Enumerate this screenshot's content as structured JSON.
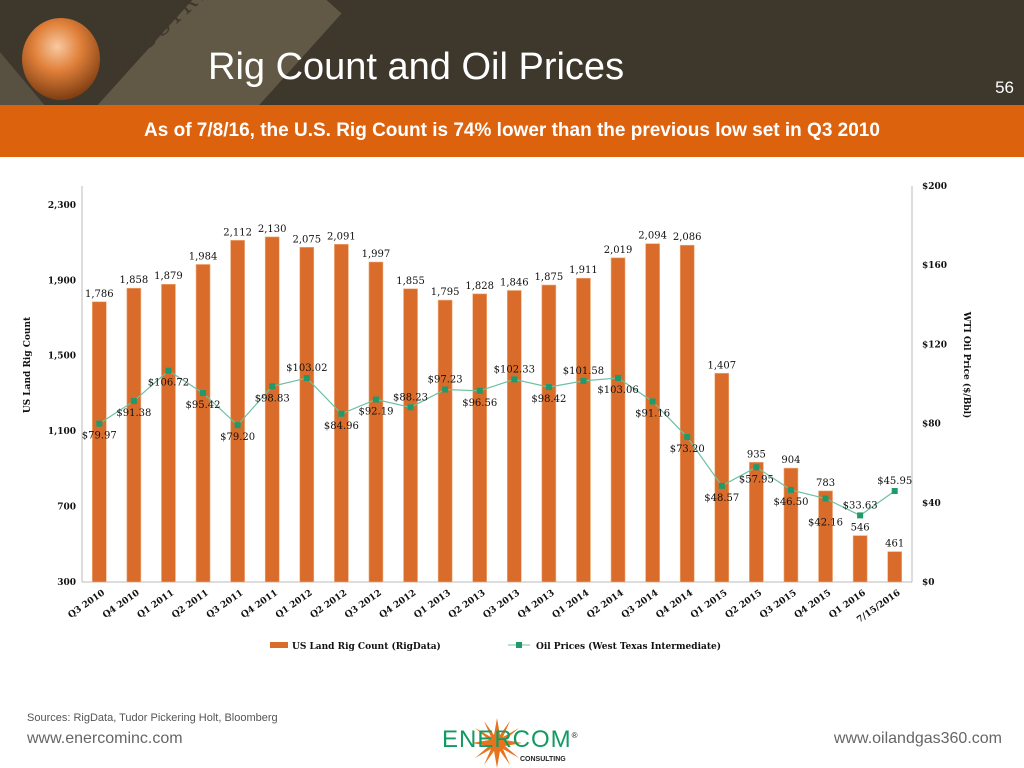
{
  "header": {
    "title": "Rig Count and Oil Prices",
    "page_number": "56",
    "decor_text": "INDUSTRY"
  },
  "subtitle": "As of 7/8/16, the U.S. Rig Count is 74% lower than the previous low set in Q3 2010",
  "chart_data": {
    "type": "bar+line",
    "categories": [
      "Q3 2010",
      "Q4 2010",
      "Q1 2011",
      "Q2 2011",
      "Q3 2011",
      "Q4 2011",
      "Q1 2012",
      "Q2 2012",
      "Q3 2012",
      "Q4 2012",
      "Q1 2013",
      "Q2 2013",
      "Q3 2013",
      "Q4 2013",
      "Q1 2014",
      "Q2 2014",
      "Q3 2014",
      "Q4 2014",
      "Q1 2015",
      "Q2 2015",
      "Q3 2015",
      "Q4 2015",
      "Q1 2016",
      "7/15/2016"
    ],
    "series": [
      {
        "name": "US Land Rig Count (RigData)",
        "type": "bar",
        "axis": "left",
        "color": "#d96c2b",
        "values": [
          1786,
          1858,
          1879,
          1984,
          2112,
          2130,
          2075,
          2091,
          1997,
          1855,
          1795,
          1828,
          1846,
          1875,
          1911,
          2019,
          2094,
          2086,
          1407,
          935,
          904,
          783,
          546,
          461
        ],
        "labels": [
          "1,786",
          "1,858",
          "1,879",
          "1,984",
          "2,112",
          "2,130",
          "2,075",
          "2,091",
          "1,997",
          "1,855",
          "1,795",
          "1,828",
          "1,846",
          "1,875",
          "1,911",
          "2,019",
          "2,094",
          "2,086",
          "1,407",
          "935",
          "904",
          "783",
          "546",
          "461"
        ]
      },
      {
        "name": "Oil Prices (West Texas Intermediate)",
        "type": "line",
        "axis": "right",
        "color": "#1f9a6a",
        "line_color": "#6cc0a0",
        "values": [
          79.97,
          91.38,
          106.72,
          95.42,
          79.2,
          98.83,
          103.02,
          84.96,
          92.19,
          88.23,
          97.23,
          96.56,
          102.33,
          98.42,
          101.58,
          103.06,
          91.16,
          73.2,
          48.57,
          57.95,
          46.5,
          42.16,
          33.63,
          45.95
        ],
        "labels": [
          "$79.97",
          "$91.38",
          "$106.72",
          "$95.42",
          "$79.20",
          "$98.83",
          "$103.02",
          "$84.96",
          "$92.19",
          "$88.23",
          "$97.23",
          "$96.56",
          "$102.33",
          "$98.42",
          "$101.58",
          "$103.06",
          "$91.16",
          "$73.20",
          "$48.57",
          "$57.95",
          "$46.50",
          "$42.16",
          "$33.63",
          "$45.95"
        ]
      }
    ],
    "ylabel": "US Land Rig Count",
    "y2label": "WTI Oil Price ($/Bbl)",
    "yticks": [
      "300",
      "700",
      "1,100",
      "1,500",
      "1,900",
      "2,300"
    ],
    "ytick_values": [
      300,
      700,
      1100,
      1500,
      1900,
      2300
    ],
    "y2ticks": [
      "$0",
      "$40",
      "$80",
      "$120",
      "$160",
      "$200"
    ],
    "y2tick_values": [
      0,
      40,
      80,
      120,
      160,
      200
    ],
    "ylim": [
      300,
      2400
    ],
    "y2lim": [
      0,
      200
    ],
    "grid": false,
    "legend": "bottom"
  },
  "footer": {
    "sources": "Sources: RigData, Tudor Pickering Holt, Bloomberg",
    "left_url": "www.enercominc.com",
    "right_url": "www.oilandgas360.com",
    "brand": "ENERCOM",
    "brand_sub": "CONSULTING",
    "brand_mark": "®"
  }
}
